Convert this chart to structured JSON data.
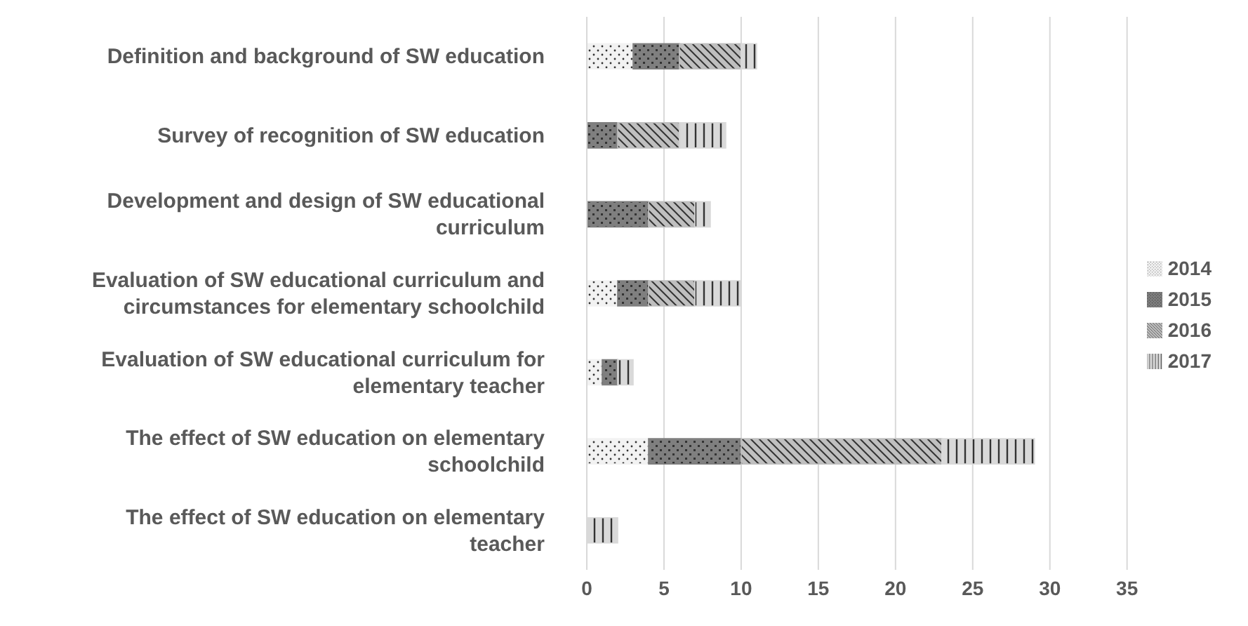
{
  "chart_data": {
    "type": "bar",
    "orientation": "horizontal",
    "stacked": true,
    "categories": [
      "Definition and background of SW education",
      "Survey of recognition of SW education",
      "Development and design of SW educational curriculum",
      "Evaluation of SW educational curriculum and circumstances for elementary schoolchild",
      "Evaluation of SW educational curriculum for elementary teacher",
      "The effect of SW education on elementary schoolchild",
      "The effect of SW education on elementary teacher"
    ],
    "series": [
      {
        "name": "2014",
        "color": "#f2f2f2",
        "values": [
          3,
          0,
          0,
          2,
          1,
          4,
          0
        ]
      },
      {
        "name": "2015",
        "color": "#7f7f7f",
        "values": [
          3,
          2,
          4,
          2,
          1,
          6,
          0
        ]
      },
      {
        "name": "2016",
        "color": "#bfbfbf",
        "values": [
          4,
          4,
          3,
          3,
          0,
          13,
          0
        ]
      },
      {
        "name": "2017",
        "color": "#d9d9d9",
        "values": [
          1,
          3,
          1,
          3,
          1,
          6,
          2
        ]
      }
    ],
    "xlim": [
      0,
      35
    ],
    "xticks": [
      0,
      5,
      10,
      15,
      20,
      25,
      30,
      35
    ],
    "grid": "x",
    "legend": "right"
  }
}
